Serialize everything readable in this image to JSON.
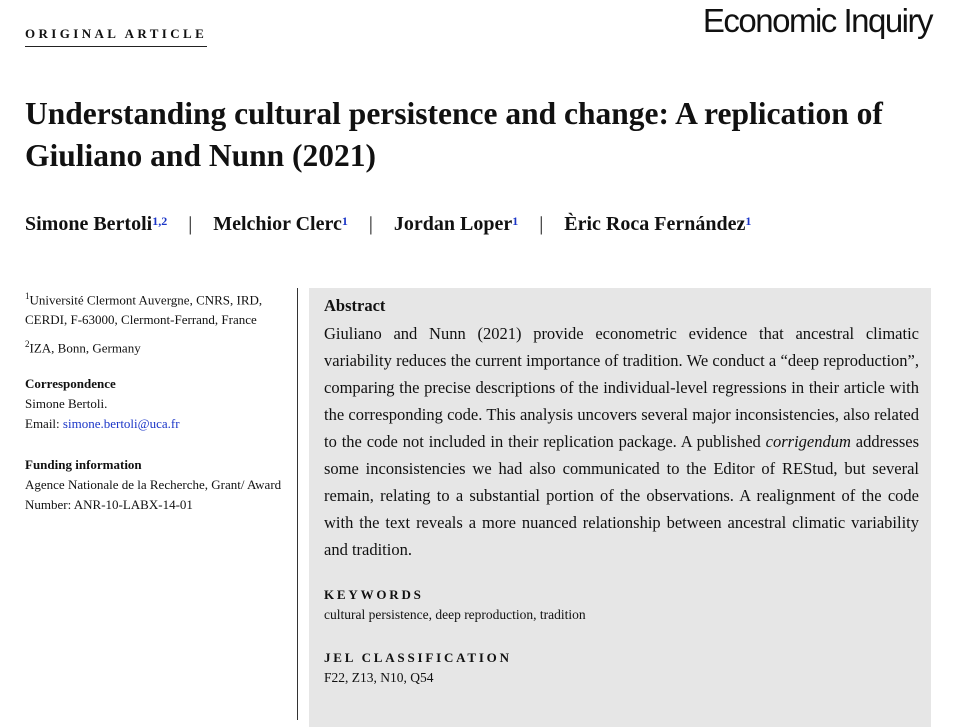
{
  "article_type": "ORIGINAL ARTICLE",
  "journal": "Economic Inquiry",
  "title": "Understanding cultural persistence and change: A replication of Giuliano and Nunn (2021)",
  "authors": [
    {
      "name": "Simone Bertoli",
      "aff": "1,2"
    },
    {
      "name": "Melchior Clerc",
      "aff": "1"
    },
    {
      "name": "Jordan Loper",
      "aff": "1"
    },
    {
      "name": "Èric Roca Fernández",
      "aff": "1"
    }
  ],
  "author_separator": "|",
  "affiliations": [
    {
      "num": "1",
      "text": "Université Clermont Auvergne, CNRS, IRD, CERDI, F-63000, Clermont-Ferrand, France"
    },
    {
      "num": "2",
      "text": "IZA, Bonn, Germany"
    }
  ],
  "correspondence": {
    "heading": "Correspondence",
    "name": "Simone Bertoli.",
    "email_label": "Email: ",
    "email": "simone.bertoli@uca.fr"
  },
  "funding": {
    "heading": "Funding information",
    "text": "Agence Nationale de la Recherche, Grant/ Award Number: ANR-10-LABX-14-01"
  },
  "abstract": {
    "heading": "Abstract",
    "text_part1": "Giuliano and Nunn (2021) provide econometric evidence that ancestral climatic variability reduces the current importance of tradition. We conduct a “deep reproduction”, comparing the precise descriptions of the individual-level regressions in their article with the corresponding code. This analysis uncovers several major inconsistencies, also related to the code not included in their replication package. A published ",
    "text_italic": "corrigendum",
    "text_part2": " addresses some inconsistencies we had also communicated to the Editor of REStud, but several remain, relating to a substantial portion of the observations. A realignment of the code with the text reveals a more nuanced relationship between ancestral climatic variability and tradition."
  },
  "keywords": {
    "heading": "KEYWORDS",
    "text": "cultural persistence, deep reproduction, tradition"
  },
  "jel": {
    "heading": "JEL CLASSIFICATION",
    "text": "F22, Z13, N10, Q54"
  }
}
